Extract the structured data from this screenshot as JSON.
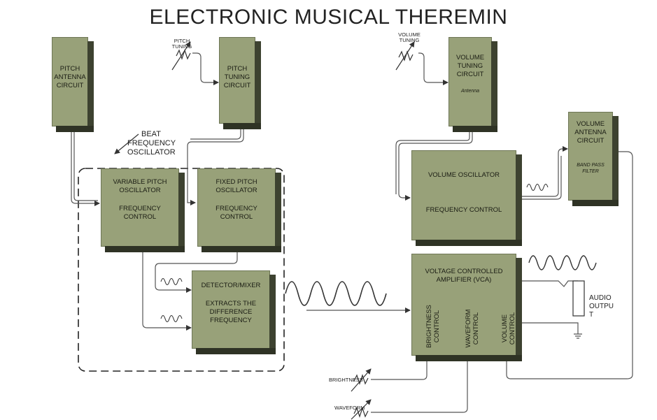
{
  "title": "ELECTRONIC MUSICAL THEREMIN",
  "blocks": {
    "pitch_antenna": {
      "line1": "PITCH",
      "line2": "ANTENNA",
      "line3": "CIRCUIT"
    },
    "pitch_tuning": {
      "line1": "PITCH",
      "line2": "TUNING",
      "line3": "CIRCUIT"
    },
    "volume_tuning": {
      "line1": "VOLUME",
      "line2": "TUNING",
      "line3": "CIRCUIT",
      "sub": "Antenna"
    },
    "volume_antenna": {
      "line1": "VOLUME",
      "line2": "ANTENNA",
      "line3": "CIRCUIT",
      "sub1": "BAND PASS",
      "sub2": "FILTER"
    },
    "variable_pitch": {
      "line1": "VARIABLE PITCH",
      "line2": "OSCILLATOR",
      "line3": "FREQUENCY",
      "line4": "CONTROL"
    },
    "fixed_pitch": {
      "line1": "FIXED PITCH",
      "line2": "OSCILLATOR",
      "line3": "FREQUENCY",
      "line4": "CONTROL"
    },
    "detector_mixer": {
      "line1": "DETECTOR/MIXER",
      "line2": "EXTRACTS THE",
      "line3": "DIFFERENCE",
      "line4": "FREQUENCY"
    },
    "volume_oscillator": {
      "line1": "VOLUME OSCILLATOR",
      "line2": "FREQUENCY CONTROL"
    },
    "vca": {
      "line1": "VOLTAGE CONTROLLED",
      "line2": "AMPLIFIER (VCA)",
      "brightness1": "BRIGHTNESS",
      "brightness2": "CONTROL",
      "waveform1": "WAVEFORM",
      "waveform2": "CONTROL",
      "volume1": "VOLUME",
      "volume2": "CONTROL"
    }
  },
  "labels": {
    "beat1": "BEAT",
    "beat2": "FREQUENCY",
    "beat3": "OSCILLATOR",
    "pitch_tuning_pot1": "PITCH",
    "pitch_tuning_pot2": "TUNING",
    "volume_tuning_pot1": "VOLUME",
    "volume_tuning_pot2": "TUNING",
    "brightness": "BRIGHTNESS",
    "waveform": "WAVEFORM",
    "audio1": "AUDIO",
    "audio2": "OUTPU",
    "audio3": "T"
  }
}
